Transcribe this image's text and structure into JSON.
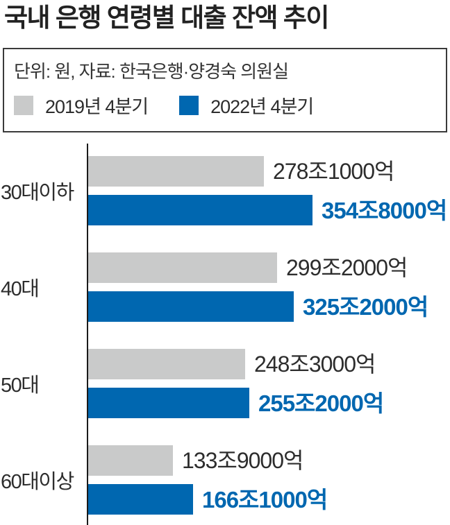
{
  "title": "국내 은행 연령별 대출 잔액 추이",
  "legend": {
    "note": "단위: 원, 자료: 한국은행·양경숙 의원실",
    "series": [
      {
        "label": "2019년 4분기",
        "color": "#c9caca"
      },
      {
        "label": "2022년 4분기",
        "color": "#0067b0"
      }
    ]
  },
  "colors": {
    "bar_gray": "#c9caca",
    "bar_blue": "#0067b0",
    "value_blue_text": "#0067b0",
    "text_dark": "#2d2d2d",
    "axis": "#1a1a1a"
  },
  "chart_data": {
    "type": "bar",
    "orientation": "horizontal",
    "title": "국내 은행 연령별 대출 잔액 추이",
    "unit": "원",
    "source": "한국은행·양경숙 의원실",
    "series_names": [
      "2019년 4분기",
      "2022년 4분기"
    ],
    "categories": [
      "30대이하",
      "40대",
      "50대",
      "60대이상"
    ],
    "value_unit_scale": "조",
    "pixels_per_unit": 0.91,
    "legend_position": "top",
    "grid": false,
    "groups": [
      {
        "category": "30대이하",
        "values": [
          278.1,
          354.8
        ],
        "value_labels": [
          "278조1000억",
          "354조8000억"
        ]
      },
      {
        "category": "40대",
        "values": [
          299.2,
          325.2
        ],
        "value_labels": [
          "299조2000억",
          "325조2000억"
        ]
      },
      {
        "category": "50대",
        "values": [
          248.3,
          255.2
        ],
        "value_labels": [
          "248조3000억",
          "255조2000억"
        ]
      },
      {
        "category": "60대이상",
        "values": [
          133.9,
          166.1
        ],
        "value_labels": [
          "133조9000억",
          "166조1000억"
        ]
      }
    ]
  }
}
